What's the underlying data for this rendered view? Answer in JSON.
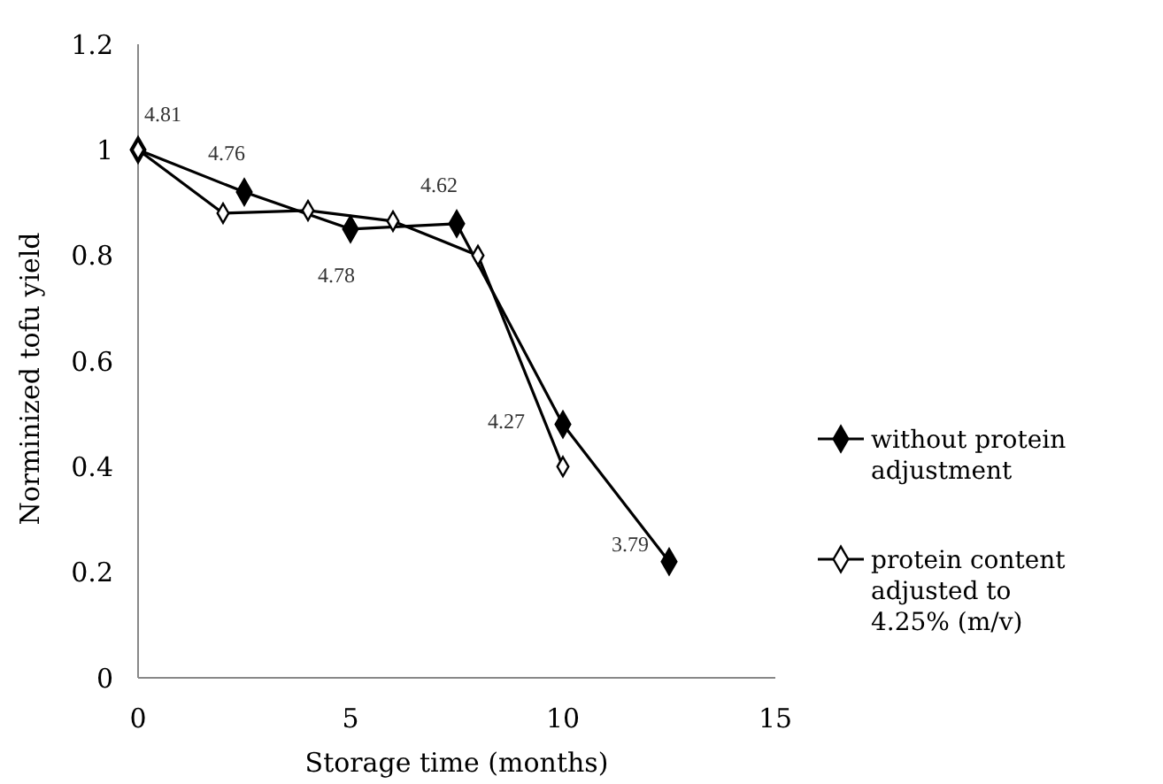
{
  "chart_data": {
    "type": "line",
    "xlabel": "Storage time (months)",
    "ylabel": "Norminized tofu yield",
    "xlim": [
      0,
      15
    ],
    "xticks": [
      0,
      5,
      10,
      15
    ],
    "ylim": [
      0,
      1.2
    ],
    "yticks": [
      0,
      0.2,
      0.4,
      0.6,
      0.8,
      1,
      1.2
    ],
    "grid": false,
    "legend": "right",
    "marker": "diamond",
    "line_style": "solid",
    "series": [
      {
        "name": "without protein adjustment",
        "color": "#000000",
        "x": [
          0,
          2.5,
          5,
          7.5,
          10,
          12.5
        ],
        "values": [
          1,
          0.92,
          0.85,
          0.86,
          0.48,
          0.22
        ]
      },
      {
        "name": "protein content adjusted to 4.25% (m/v)",
        "color": "#000000",
        "x": [
          0,
          2,
          4,
          6,
          8,
          10
        ],
        "values": [
          1,
          0.88,
          0.885,
          0.865,
          0.8,
          0.4
        ]
      }
    ],
    "annotations": [
      {
        "text": "4.81",
        "x": 0,
        "y": 1
      },
      {
        "text": "4.76",
        "x": 2.5,
        "y": 0.92
      },
      {
        "text": "4.78",
        "x": 5,
        "y": 0.85
      },
      {
        "text": "4.62",
        "x": 7.5,
        "y": 0.86
      },
      {
        "text": "4.27",
        "x": 10,
        "y": 0.48
      },
      {
        "text": "3.79",
        "x": 12.5,
        "y": 0.22
      }
    ]
  }
}
